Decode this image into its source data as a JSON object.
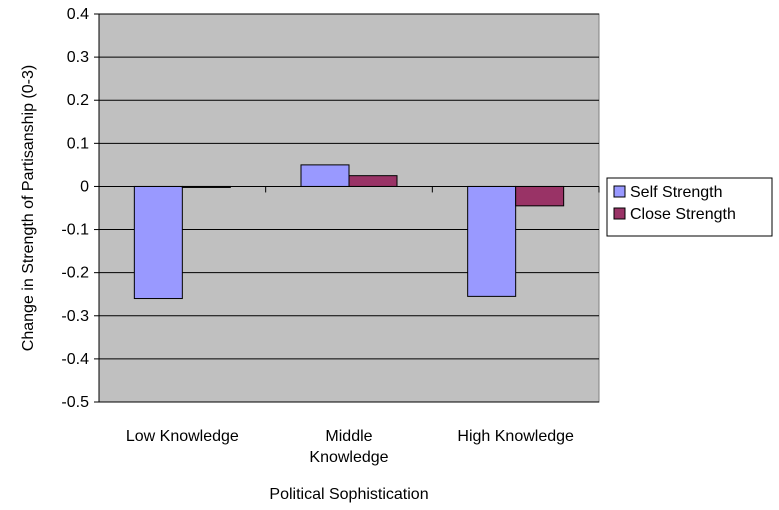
{
  "chart_data": {
    "type": "bar",
    "categories": [
      "Low Knowledge",
      "Middle Knowledge",
      "High Knowledge"
    ],
    "series": [
      {
        "name": "Self Strength",
        "values": [
          -0.26,
          0.05,
          -0.255
        ],
        "color": "#9999FF"
      },
      {
        "name": "Close Strength",
        "values": [
          -0.002,
          0.025,
          -0.045
        ],
        "color": "#993366"
      }
    ],
    "xlabel": "Political Sophistication",
    "ylabel": "Change in Strength of Partisanship (0-3)",
    "ylim": [
      -0.5,
      0.4
    ],
    "yticks": [
      "0.4",
      "0.3",
      "0.2",
      "0.1",
      "0",
      "-0.1",
      "-0.2",
      "-0.3",
      "-0.4",
      "-0.5"
    ],
    "grid": true,
    "plot_background": "#C0C0C0",
    "legend_position": "right"
  }
}
